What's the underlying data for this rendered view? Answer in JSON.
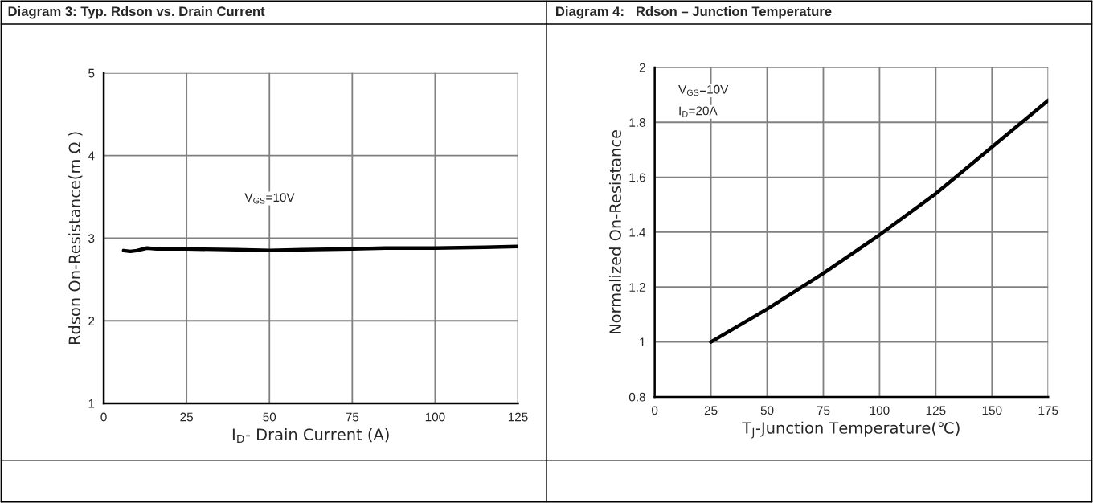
{
  "chart_data": [
    {
      "type": "line",
      "title": "Diagram 3: Typ. Rdson vs. Drain Current",
      "xlabel": "I$_{D}$- Drain Current (A)",
      "ylabel": "Rdson On-Resistance(m Ω )",
      "annotations": [
        "V$_{GS}$=10V"
      ],
      "xlim": [
        0,
        125
      ],
      "xticks": [
        0,
        25,
        50,
        75,
        100,
        125
      ],
      "ylim": [
        1,
        5
      ],
      "yticks": [
        1,
        2,
        3,
        4,
        5
      ],
      "grid": true,
      "legend": false,
      "marker": "none",
      "line_style": "solid",
      "series": [
        {
          "color": "#000000",
          "x": [
            6,
            8,
            10,
            13,
            16,
            25,
            40,
            50,
            60,
            75,
            85,
            100,
            115,
            125
          ],
          "values": [
            2.85,
            2.84,
            2.85,
            2.88,
            2.87,
            2.87,
            2.86,
            2.85,
            2.86,
            2.87,
            2.88,
            2.88,
            2.89,
            2.9
          ]
        }
      ]
    },
    {
      "type": "line",
      "title": "Diagram 4:   Rdson – Junction Temperature",
      "xlabel": "T$_{J}$-Junction Temperature(℃)",
      "ylabel": "Normalized On-Resistance",
      "annotations": [
        "V$_{GS}$=10V",
        "I$_{D}$=20A"
      ],
      "xlim": [
        0,
        175
      ],
      "xticks": [
        0,
        25,
        50,
        75,
        100,
        125,
        150,
        175
      ],
      "ylim": [
        0.8,
        2
      ],
      "yticks": [
        0.8,
        1,
        1.2,
        1.4,
        1.6,
        1.8,
        2
      ],
      "grid": true,
      "legend": false,
      "marker": "none",
      "line_style": "solid",
      "series": [
        {
          "color": "#000000",
          "x": [
            25,
            50,
            75,
            100,
            125,
            150,
            175
          ],
          "values": [
            1.0,
            1.12,
            1.25,
            1.39,
            1.54,
            1.71,
            1.88
          ]
        }
      ]
    }
  ]
}
